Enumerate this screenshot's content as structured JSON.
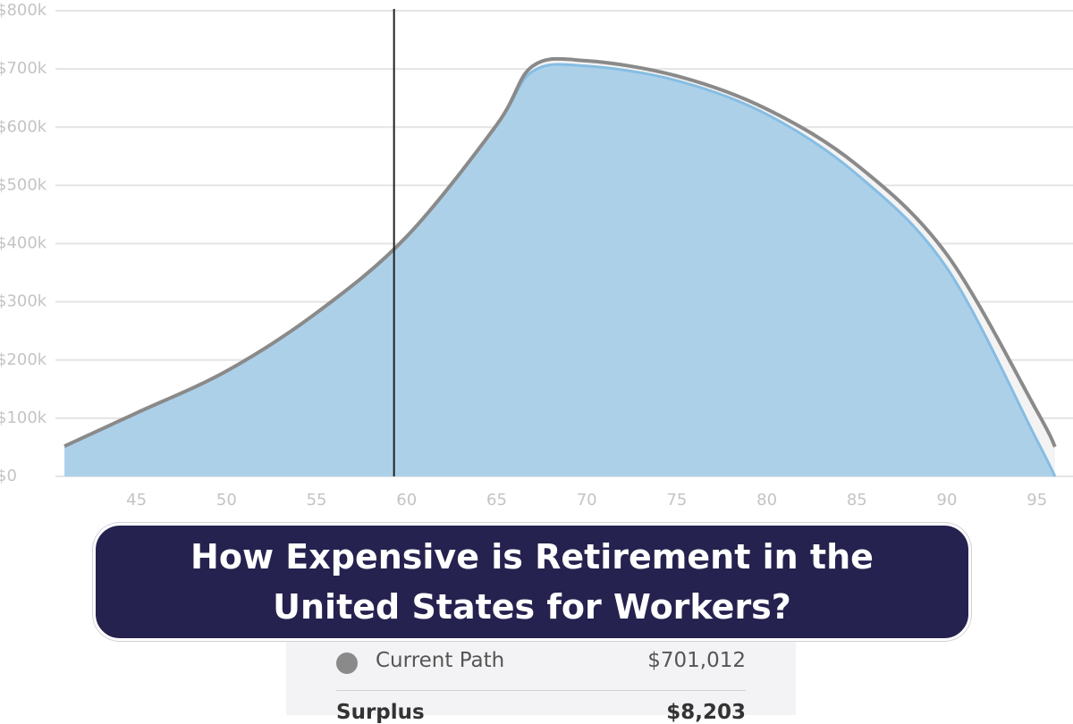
{
  "chart_data": {
    "type": "area",
    "x": [
      41,
      45,
      50,
      55,
      60,
      65,
      67,
      70,
      75,
      80,
      85,
      90,
      95,
      96
    ],
    "series": [
      {
        "color": "#a9cde8",
        "values": [
          52000,
          109000,
          181000,
          281000,
          412000,
          604000,
          696000,
          705000,
          680000,
          622000,
          519000,
          358000,
          62000,
          0
        ]
      },
      {
        "name": "Current Path",
        "color": "#8a8a8a",
        "values": [
          52000,
          109000,
          181000,
          281000,
          412000,
          604000,
          705000,
          714000,
          688000,
          631000,
          535000,
          381000,
          112000,
          51000
        ]
      }
    ],
    "marker_x": 59.3,
    "xlim": [
      40.5,
      97
    ],
    "ylim": [
      0,
      800000
    ],
    "xticks": [
      45,
      50,
      55,
      60,
      65,
      70,
      75,
      80,
      85,
      90,
      95
    ],
    "yticks": [
      {
        "value": 0,
        "label": "$0"
      },
      {
        "value": 100000,
        "label": "$100k"
      },
      {
        "value": 200000,
        "label": "$200k"
      },
      {
        "value": 300000,
        "label": "$300k"
      },
      {
        "value": 400000,
        "label": "$400k"
      },
      {
        "value": 500000,
        "label": "$500k"
      },
      {
        "value": 600000,
        "label": "$600k"
      },
      {
        "value": 700000,
        "label": "$700k"
      },
      {
        "value": 800000,
        "label": "$800k"
      }
    ],
    "grid": true
  },
  "banner": {
    "title": "How Expensive is Retirement in the United States for Workers?"
  },
  "summary": {
    "current_path_value": "$701,012",
    "surplus_label": "Surplus",
    "surplus_value": "$8,203"
  }
}
